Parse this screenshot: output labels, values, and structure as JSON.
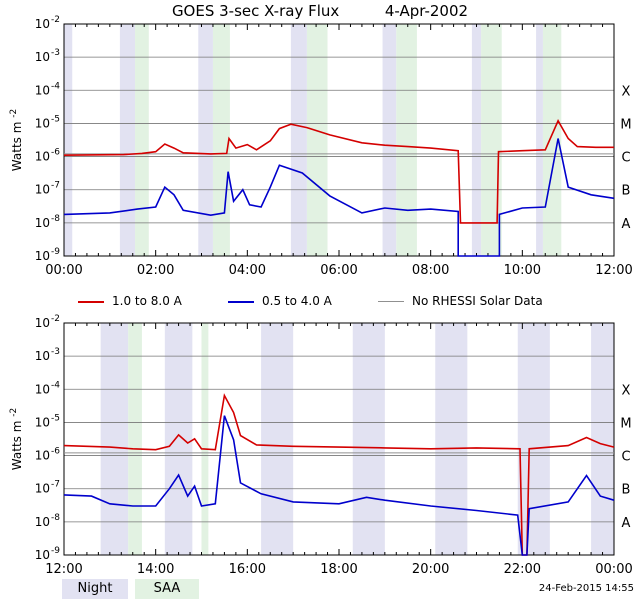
{
  "title": "GOES 3-sec X-ray Flux",
  "date": "4-Apr-2002",
  "footer_timestamp": "24-Feb-2015 14:55",
  "colors": {
    "long": "#d40000",
    "short": "#0000cc",
    "norhessi": "#909090",
    "night": "#e2e2f2",
    "saa": "#e2f2e2"
  },
  "legend": {
    "items": [
      {
        "label": "1.0 to 8.0 A",
        "color": "#d40000"
      },
      {
        "label": "0.5 to 4.0 A",
        "color": "#0000cc"
      },
      {
        "label": "No RHESSI Solar Data",
        "color": "#909090"
      }
    ],
    "night_label": "Night",
    "saa_label": "SAA"
  },
  "chart_data": [
    {
      "type": "line",
      "ylabel": "Watts m",
      "ylabel_exp": "-2",
      "yscale": "log",
      "ylim_exp": [
        -9,
        -2
      ],
      "xlim_hours": [
        0,
        12
      ],
      "x_ticks": [
        "00:00",
        "02:00",
        "04:00",
        "06:00",
        "08:00",
        "10:00",
        "12:00"
      ],
      "y_tick_exps": [
        "-9",
        "-8",
        "-7",
        "-6",
        "-5",
        "-4",
        "-3",
        "-2"
      ],
      "class_labels": [
        {
          "label": "A",
          "exp": -8
        },
        {
          "label": "B",
          "exp": -7
        },
        {
          "label": "C",
          "exp": -6
        },
        {
          "label": "M",
          "exp": -5
        },
        {
          "label": "X",
          "exp": -4
        }
      ],
      "night": [
        [
          0,
          0.18
        ],
        [
          1.22,
          1.55
        ],
        [
          2.93,
          3.25
        ],
        [
          4.95,
          5.3
        ],
        [
          6.95,
          7.25
        ],
        [
          8.9,
          9.1
        ],
        [
          10.3,
          10.45
        ]
      ],
      "saa": [
        [
          1.55,
          1.85
        ],
        [
          3.25,
          3.62
        ],
        [
          5.3,
          5.75
        ],
        [
          7.25,
          7.7
        ],
        [
          9.1,
          9.55
        ],
        [
          10.45,
          10.85
        ]
      ],
      "series": [
        {
          "name": "1.0 to 8.0 A",
          "points": [
            [
              0,
              1.1e-06
            ],
            [
              1.3,
              1.15e-06
            ],
            [
              1.7,
              1.25e-06
            ],
            [
              2.0,
              1.4e-06
            ],
            [
              2.2,
              2.4e-06
            ],
            [
              2.4,
              1.8e-06
            ],
            [
              2.6,
              1.3e-06
            ],
            [
              3.2,
              1.2e-06
            ],
            [
              3.55,
              1.25e-06
            ],
            [
              3.6,
              3.5e-06
            ],
            [
              3.75,
              1.8e-06
            ],
            [
              4.0,
              2.3e-06
            ],
            [
              4.2,
              1.6e-06
            ],
            [
              4.5,
              3e-06
            ],
            [
              4.7,
              7e-06
            ],
            [
              4.95,
              9.5e-06
            ],
            [
              5.3,
              7.5e-06
            ],
            [
              5.8,
              4.5e-06
            ],
            [
              6.5,
              2.6e-06
            ],
            [
              7.0,
              2.2e-06
            ],
            [
              7.5,
              2e-06
            ],
            [
              8.0,
              1.8e-06
            ],
            [
              8.6,
              1.5e-06
            ],
            [
              8.65,
              1e-08
            ],
            [
              9.45,
              1e-08
            ],
            [
              9.48,
              1.4e-06
            ],
            [
              10.0,
              1.5e-06
            ],
            [
              10.5,
              1.6e-06
            ],
            [
              10.78,
              1.2e-05
            ],
            [
              11.0,
              3.5e-06
            ],
            [
              11.2,
              2e-06
            ],
            [
              11.6,
              1.9e-06
            ],
            [
              12.0,
              1.9e-06
            ]
          ]
        },
        {
          "name": "0.5 to 4.0 A",
          "points": [
            [
              0,
              1.8e-08
            ],
            [
              1.0,
              2e-08
            ],
            [
              1.6,
              2.6e-08
            ],
            [
              2.0,
              3e-08
            ],
            [
              2.2,
              1.2e-07
            ],
            [
              2.4,
              7e-08
            ],
            [
              2.6,
              2.4e-08
            ],
            [
              3.2,
              1.7e-08
            ],
            [
              3.5,
              2e-08
            ],
            [
              3.58,
              3.5e-07
            ],
            [
              3.7,
              4.5e-08
            ],
            [
              3.9,
              1e-07
            ],
            [
              4.05,
              3.5e-08
            ],
            [
              4.3,
              3e-08
            ],
            [
              4.5,
              1.2e-07
            ],
            [
              4.7,
              5.5e-07
            ],
            [
              5.2,
              3.2e-07
            ],
            [
              5.8,
              6.5e-08
            ],
            [
              6.5,
              2e-08
            ],
            [
              7.0,
              2.8e-08
            ],
            [
              7.5,
              2.4e-08
            ],
            [
              8.0,
              2.6e-08
            ],
            [
              8.6,
              2.2e-08
            ],
            [
              8.6,
              1e-09
            ],
            [
              9.5,
              1e-09
            ],
            [
              9.5,
              1.8e-08
            ],
            [
              10.0,
              2.8e-08
            ],
            [
              10.5,
              3e-08
            ],
            [
              10.78,
              3.5e-06
            ],
            [
              11.0,
              1.2e-07
            ],
            [
              11.5,
              7e-08
            ],
            [
              12.0,
              5.5e-08
            ]
          ]
        },
        {
          "name": "No RHESSI Solar Data",
          "points": [
            [
              0,
              1.2e-06
            ],
            [
              12,
              1.2e-06
            ]
          ]
        }
      ]
    },
    {
      "type": "line",
      "ylabel": "Watts m",
      "ylabel_exp": "-2",
      "yscale": "log",
      "ylim_exp": [
        -9,
        -2
      ],
      "xlim_hours": [
        12,
        24
      ],
      "x_ticks": [
        "12:00",
        "14:00",
        "16:00",
        "18:00",
        "20:00",
        "22:00",
        "00:00"
      ],
      "y_tick_exps": [
        "-9",
        "-8",
        "-7",
        "-6",
        "-5",
        "-4",
        "-3",
        "-2"
      ],
      "class_labels": [
        {
          "label": "A",
          "exp": -8
        },
        {
          "label": "B",
          "exp": -7
        },
        {
          "label": "C",
          "exp": -6
        },
        {
          "label": "M",
          "exp": -5
        },
        {
          "label": "X",
          "exp": -4
        }
      ],
      "night": [
        [
          12.8,
          13.4
        ],
        [
          14.2,
          14.8
        ],
        [
          16.3,
          17.0
        ],
        [
          18.3,
          19.0
        ],
        [
          20.1,
          20.8
        ],
        [
          21.9,
          22.6
        ],
        [
          23.5,
          24.0
        ]
      ],
      "saa": [
        [
          13.4,
          13.7
        ],
        [
          15.0,
          15.15
        ]
      ],
      "series": [
        {
          "name": "1.0 to 8.0 A",
          "points": [
            [
              12,
              2e-06
            ],
            [
              13,
              1.8e-06
            ],
            [
              13.5,
              1.6e-06
            ],
            [
              14,
              1.5e-06
            ],
            [
              14.3,
              1.9e-06
            ],
            [
              14.5,
              4.2e-06
            ],
            [
              14.7,
              2.4e-06
            ],
            [
              14.85,
              3.2e-06
            ],
            [
              15.0,
              1.6e-06
            ],
            [
              15.3,
              1.5e-06
            ],
            [
              15.5,
              6.5e-05
            ],
            [
              15.7,
              2e-05
            ],
            [
              15.85,
              4e-06
            ],
            [
              16.2,
              2.1e-06
            ],
            [
              17,
              1.9e-06
            ],
            [
              18,
              1.8e-06
            ],
            [
              19,
              1.7e-06
            ],
            [
              20,
              1.6e-06
            ],
            [
              21,
              1.7e-06
            ],
            [
              21.95,
              1.6e-06
            ],
            [
              22.0,
              1e-09
            ],
            [
              22.1,
              1e-09
            ],
            [
              22.15,
              1.6e-06
            ],
            [
              23,
              2e-06
            ],
            [
              23.4,
              3.5e-06
            ],
            [
              23.7,
              2.3e-06
            ],
            [
              24,
              1.8e-06
            ]
          ]
        },
        {
          "name": "0.5 to 4.0 A",
          "points": [
            [
              12,
              6.5e-08
            ],
            [
              12.6,
              6e-08
            ],
            [
              13.0,
              3.5e-08
            ],
            [
              13.5,
              3e-08
            ],
            [
              14,
              3e-08
            ],
            [
              14.3,
              1e-07
            ],
            [
              14.5,
              2.6e-07
            ],
            [
              14.7,
              6e-08
            ],
            [
              14.85,
              1.2e-07
            ],
            [
              15.0,
              3e-08
            ],
            [
              15.3,
              3.5e-08
            ],
            [
              15.5,
              1.6e-05
            ],
            [
              15.7,
              3e-06
            ],
            [
              15.85,
              1.5e-07
            ],
            [
              16.3,
              7e-08
            ],
            [
              17,
              4e-08
            ],
            [
              18,
              3.5e-08
            ],
            [
              18.6,
              5.5e-08
            ],
            [
              19,
              4.5e-08
            ],
            [
              20,
              3e-08
            ],
            [
              21,
              2.2e-08
            ],
            [
              21.9,
              1.6e-08
            ],
            [
              22.0,
              1e-09
            ],
            [
              22.1,
              1e-09
            ],
            [
              22.15,
              2.5e-08
            ],
            [
              23,
              4e-08
            ],
            [
              23.4,
              2.5e-07
            ],
            [
              23.7,
              6e-08
            ],
            [
              24,
              4.5e-08
            ]
          ]
        },
        {
          "name": "No RHESSI Solar Data",
          "points": [
            [
              12,
              1.2e-06
            ],
            [
              24,
              1.2e-06
            ]
          ]
        }
      ]
    }
  ]
}
